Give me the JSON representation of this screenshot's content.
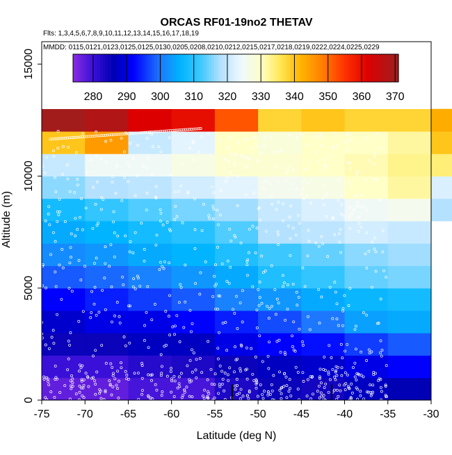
{
  "chart_data": {
    "type": "heatmap",
    "title": "ORCAS RF01-19no2 THETAV",
    "flights_line": "Flts: 1,3,4,5,6,7,8,9,10,11,12,13,14,15,16,17,18,19",
    "mmdd_line": "MMDD: 0115,0121,0123,0125,0125,0130,0205,0208,0210,0212,0215,0217,0218,0219,0222,0224,0225,0229",
    "xlabel": "Latitude (deg N)",
    "ylabel": "Altitude (m)",
    "xlim": [
      -75,
      -30
    ],
    "ylim": [
      0,
      16000
    ],
    "x_ticks": [
      -75,
      -70,
      -65,
      -60,
      -55,
      -50,
      -45,
      -40,
      -35,
      -30
    ],
    "y_ticks": [
      0,
      5000,
      10000,
      15000
    ],
    "colorbar": {
      "min": 274,
      "max": 371,
      "ticks": [
        280,
        290,
        300,
        310,
        320,
        330,
        340,
        350,
        360,
        370
      ],
      "stops": [
        [
          274,
          "#8a2be2"
        ],
        [
          280,
          "#3a10d8"
        ],
        [
          286,
          "#0000b4"
        ],
        [
          292,
          "#0000ff"
        ],
        [
          300,
          "#1e78ff"
        ],
        [
          306,
          "#00b4ff"
        ],
        [
          312,
          "#3cc8ff"
        ],
        [
          318,
          "#b4e1ff"
        ],
        [
          324,
          "#eef8ff"
        ],
        [
          330,
          "#ffffc8"
        ],
        [
          336,
          "#ffe650"
        ],
        [
          342,
          "#ffb400"
        ],
        [
          348,
          "#ff8200"
        ],
        [
          355,
          "#ff3200"
        ],
        [
          362,
          "#dc0000"
        ],
        [
          371,
          "#9b2020"
        ]
      ]
    },
    "lat_bins": [
      -75,
      -70,
      -65,
      -60,
      -55,
      -50,
      -45,
      -40,
      -35,
      -30
    ],
    "alt_bins": [
      0,
      1000,
      2000,
      3000,
      4000,
      5000,
      6000,
      7000,
      8000,
      9000,
      10000,
      11000,
      12000
    ],
    "grid": [
      [
        277,
        277,
        279,
        279,
        283,
        285,
        284,
        287,
        286,
        null
      ],
      [
        280,
        280,
        282,
        283,
        285,
        287,
        288,
        290,
        292,
        null
      ],
      [
        285,
        285,
        287,
        287,
        290,
        292,
        293,
        296,
        298,
        null
      ],
      [
        288,
        290,
        290,
        292,
        294,
        297,
        300,
        304,
        305,
        null
      ],
      [
        292,
        294,
        296,
        298,
        301,
        303,
        305,
        307,
        308,
        null
      ],
      [
        298,
        299,
        301,
        303,
        305,
        309,
        311,
        314,
        315,
        null
      ],
      [
        302,
        303,
        305,
        306,
        309,
        312,
        314,
        316,
        317,
        null
      ],
      [
        305,
        306,
        308,
        310,
        313,
        318,
        319,
        321,
        320,
        null
      ],
      [
        308,
        311,
        313,
        315,
        317,
        320,
        322,
        325,
        326,
        318
      ],
      [
        316,
        318,
        319,
        321,
        323,
        326,
        327,
        330,
        332,
        322
      ],
      [
        320,
        325,
        325,
        327,
        329,
        329,
        330,
        331,
        333,
        334
      ],
      [
        340,
        345,
        320,
        323,
        330,
        328,
        330,
        330,
        332,
        340
      ],
      [
        370,
        368,
        362,
        360,
        352,
        338,
        340,
        338,
        338,
        343
      ]
    ]
  }
}
